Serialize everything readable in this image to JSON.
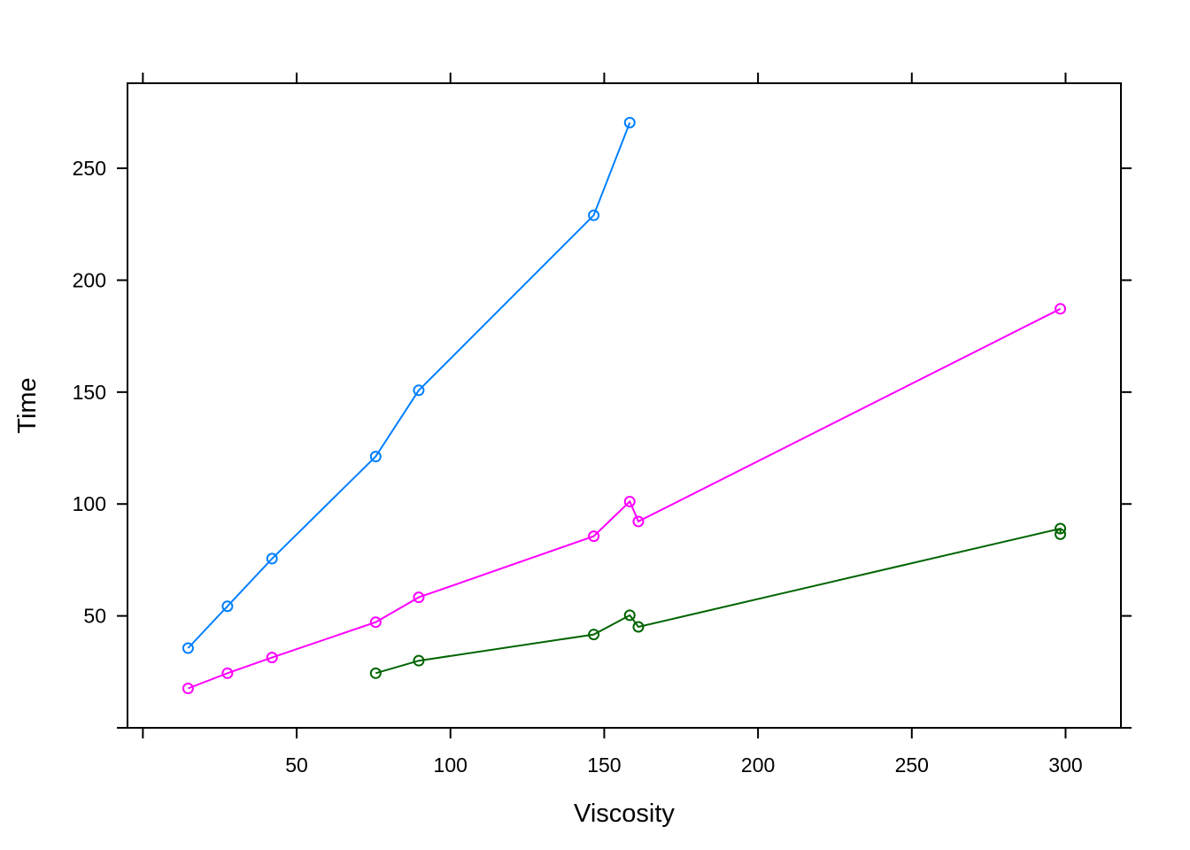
{
  "chart_data": {
    "type": "line",
    "title": "",
    "xlabel": "Viscosity",
    "ylabel": "Time",
    "xlim": [
      -5,
      318
    ],
    "ylim": [
      0,
      288
    ],
    "xticks": [
      50,
      100,
      150,
      200,
      250,
      300
    ],
    "xtick_labels": [
      "50",
      "100",
      "150",
      "200",
      "250",
      "300"
    ],
    "yticks": [
      50,
      100,
      150,
      200,
      250
    ],
    "ytick_labels": [
      "50",
      "100",
      "150",
      "200",
      "250"
    ],
    "grid": false,
    "legend": "none",
    "markers": "open-circle",
    "series": [
      {
        "color": "#0080ff",
        "x": [
          14.7,
          27.5,
          42.0,
          75.7,
          89.7,
          146.6,
          158.3
        ],
        "y": [
          35.6,
          54.3,
          75.6,
          121.2,
          150.8,
          229.0,
          270.4
        ]
      },
      {
        "color": "#ff00ff",
        "x": [
          14.7,
          27.5,
          42.0,
          75.7,
          89.7,
          146.6,
          158.3,
          161.1,
          298.3
        ],
        "y": [
          17.6,
          24.4,
          31.4,
          47.2,
          58.3,
          85.6,
          101.1,
          92.2,
          187.2
        ]
      },
      {
        "color": "#006400",
        "x": [
          75.7,
          89.7,
          146.6,
          158.3,
          161.1,
          298.3,
          298.3
        ],
        "y": [
          24.4,
          30.0,
          41.7,
          50.3,
          45.1,
          89.0,
          86.5
        ]
      }
    ]
  }
}
